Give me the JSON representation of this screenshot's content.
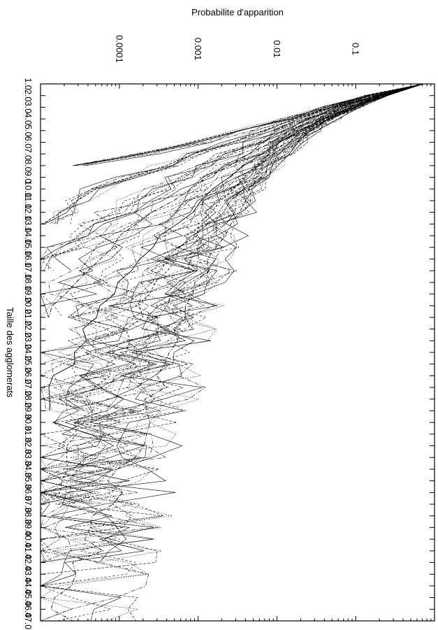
{
  "chart_data": {
    "type": "line",
    "orientation": "rotated-90-clockwise",
    "title": "",
    "ylabel": "Probabilite d'apparition",
    "xlabel": "Taille des agglomerats",
    "y_scale": "log",
    "y_range": [
      1e-05,
      1
    ],
    "y_ticks": [
      {
        "value": 0.0001,
        "label": "0.0001"
      },
      {
        "value": 0.001,
        "label": "0.001"
      },
      {
        "value": 0.01,
        "label": "0.01"
      },
      {
        "value": 0.1,
        "label": "0.1"
      }
    ],
    "x_range": [
      1,
      47
    ],
    "x_ticks": [
      "1.0",
      "2.0",
      "3.0",
      "4.0",
      "5.0",
      "6.0",
      "7.0",
      "8.0",
      "9.0",
      "10.0",
      "11.0",
      "12.0",
      "13.0",
      "14.0",
      "15.0",
      "16.0",
      "17.0",
      "18.0",
      "19.0",
      "20.0",
      "21.0",
      "22.0",
      "23.0",
      "24.0",
      "25.0",
      "26.0",
      "27.0",
      "28.0",
      "29.0",
      "30.0",
      "31.0",
      "32.0",
      "33.0",
      "34.0",
      "35.0",
      "36.0",
      "37.0",
      "38.0",
      "39.0",
      "40.0",
      "41.0",
      "42.0",
      "43.0",
      "44.0",
      "45.0",
      "46.0",
      "47.0"
    ],
    "grid": false,
    "legend": "none",
    "line_color": "#000000",
    "series_count": 60,
    "series": [
      {
        "values": [
          0.72,
          0.145,
          0.041,
          0.0124,
          0.00365,
          0.00103,
          0.000215,
          2.45e-05
        ]
      },
      {
        "values": [
          0.72,
          0.16,
          0.05,
          0.018,
          0.0066,
          0.0026,
          0.0009,
          0.00038,
          0.00014,
          5.5e-05,
          3.2e-05,
          1.8e-05,
          1.2e-05
        ]
      },
      {
        "values": [
          0.72,
          0.18,
          0.062,
          0.025,
          0.011,
          0.0052,
          0.0025,
          0.0012,
          0.00062,
          0.0003,
          0.00017,
          9e-05,
          5.4e-05,
          3.3e-05,
          2.1e-05,
          1.5e-05,
          1.2e-05
        ]
      },
      {
        "values": [
          0.72,
          0.2,
          0.075,
          0.032,
          0.0155,
          0.0081,
          0.0044,
          0.0025,
          0.0014,
          0.00082,
          0.00048,
          0.00029,
          0.00018,
          0.000115,
          7.6e-05,
          5.2e-05,
          3.7e-05,
          2.7e-05,
          2e-05,
          1.6e-05,
          1.3e-05
        ]
      },
      {
        "values": [
          0.72,
          0.21,
          0.085,
          0.039,
          0.02,
          0.0112,
          0.0066,
          0.0041,
          0.0026,
          0.0017,
          0.00112,
          0.00076,
          0.00052,
          0.00037,
          0.00027,
          0.0002,
          0.00015,
          0.00011,
          8.6e-05,
          6.7e-05,
          5.3e-05,
          4.2e-05,
          3.4e-05,
          2.8e-05,
          2.3e-05,
          1.9e-05,
          1.6e-05,
          1.4e-05,
          1.2e-05
        ]
      },
      {
        "values": [
          0.72,
          0.215,
          0.09,
          0.043,
          0.023,
          0.0135,
          0.0085,
          0.0057,
          0.0039,
          0.0028,
          0.002,
          0.00148,
          0.00111,
          0.00084,
          0.00065,
          0.00051,
          0.0004,
          0.00032,
          0.00026,
          0.00021,
          0.00017,
          0.00014,
          0.000115,
          9.6e-05,
          8e-05,
          6.7e-05,
          5.6e-05,
          4.7e-05,
          4e-05,
          3.4e-05,
          2.9e-05,
          2.5e-05,
          2.2e-05,
          1.9e-05,
          1.6e-05,
          1.4e-05,
          1.2e-05
        ]
      },
      {
        "values": [
          0.72,
          0.22,
          0.094,
          0.047,
          0.026,
          0.0158,
          0.0103,
          0.0071,
          0.0051,
          0.0038,
          0.0029,
          0.00224,
          0.00176,
          0.0014,
          0.00112,
          0.0009,
          0.00073,
          0.0006,
          0.00049,
          0.0004,
          0.00033,
          0.00028,
          0.00023,
          0.00019,
          0.00016,
          0.000135,
          0.000114,
          9.7e-05,
          8.2e-05,
          7e-05,
          6e-05,
          5.1e-05,
          4.4e-05,
          3.8e-05,
          3.3e-05,
          2.8e-05,
          2.4e-05,
          2.1e-05,
          1.8e-05,
          1.6e-05,
          1.4e-05,
          1.2e-05
        ]
      },
      {
        "values": [
          0.72,
          0.225,
          0.098,
          0.05,
          0.028,
          0.0176,
          0.0118,
          0.0083,
          0.0062,
          0.0048,
          0.0038,
          0.0031,
          0.0025,
          0.0021,
          0.00175,
          0.00148,
          0.00126,
          0.00108,
          0.00093,
          0.0008,
          0.00069,
          0.0006,
          0.00052,
          0.00045,
          0.00039,
          0.00034,
          0.000295,
          0.000257,
          0.000224,
          0.000195,
          0.00017,
          0.000148,
          0.000129,
          0.000112,
          9.8e-05,
          8.5e-05,
          7.4e-05,
          6.4e-05,
          5.6e-05,
          4.9e-05,
          4.2e-05,
          3.7e-05,
          3.2e-05,
          2.8e-05,
          2.4e-05,
          2.1e-05,
          1.8e-05
        ]
      }
    ]
  }
}
